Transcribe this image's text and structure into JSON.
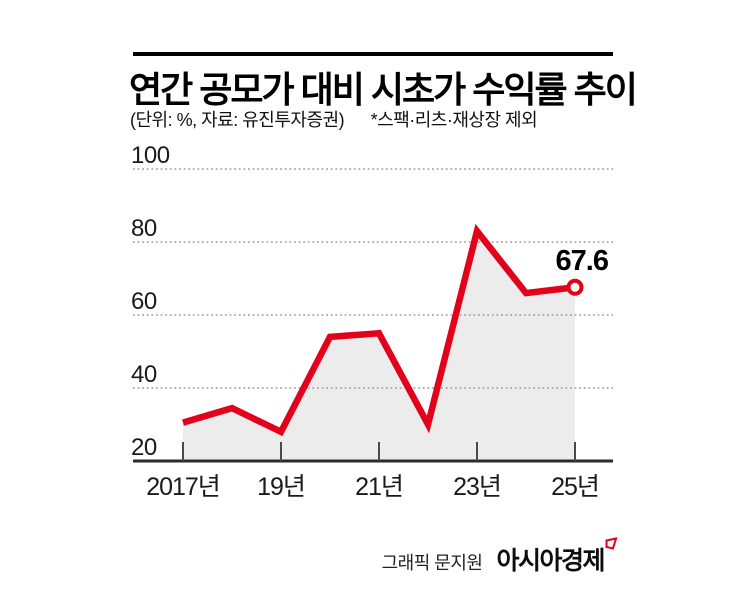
{
  "header": {
    "title": "연간 공모가 대비 시초가 수익률 추이",
    "unit_note": "(단위: %, 자료: 유진투자증권)",
    "exclusion_note": "*스팩·리츠·재상장 제외"
  },
  "chart_data": {
    "type": "area",
    "title": "연간 공모가 대비 시초가 수익률 추이",
    "unit": "%",
    "source": "유진투자증권",
    "categories": [
      2017,
      2018,
      2019,
      2020,
      2021,
      2022,
      2023,
      2024,
      2025
    ],
    "values": [
      30.5,
      34.5,
      28,
      54,
      55,
      30,
      83,
      66,
      67.6
    ],
    "x_tick_positions": [
      2017,
      2019,
      2021,
      2023,
      2025
    ],
    "x_tick_labels": [
      "2017년",
      "19년",
      "21년",
      "23년",
      "25년"
    ],
    "y_ticks": [
      20,
      40,
      60,
      80,
      100
    ],
    "ylim": [
      20,
      100
    ],
    "grid": "dotted-horizontal",
    "legend": "none",
    "last_point_label": "67.6",
    "line_color": "#e2001a",
    "area_color": "#ececec",
    "marker": "open-circle-on-last-point"
  },
  "footer": {
    "credit": "그래픽 문지원",
    "brand": "아시아경제",
    "brand_mark_color": "#e2001a"
  }
}
